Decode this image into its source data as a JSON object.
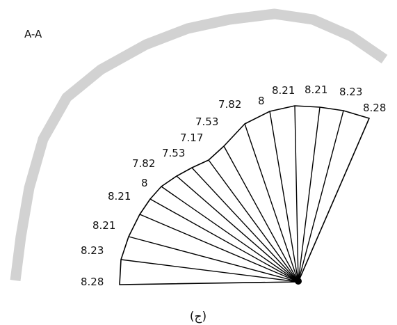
{
  "figure": {
    "section_label": "A-A",
    "caption": "(ج)"
  },
  "sector_lengths": [
    "8.28",
    "8.23",
    "8.21",
    "8.21",
    "8",
    "7.82",
    "7.53",
    "7.17",
    "7.53",
    "7.82",
    "8",
    "8.21",
    "8.21",
    "8.23",
    "8.28"
  ],
  "colors": {
    "outline": "#000000",
    "arc": "#d2d2d2",
    "fill": "#ffffff"
  }
}
